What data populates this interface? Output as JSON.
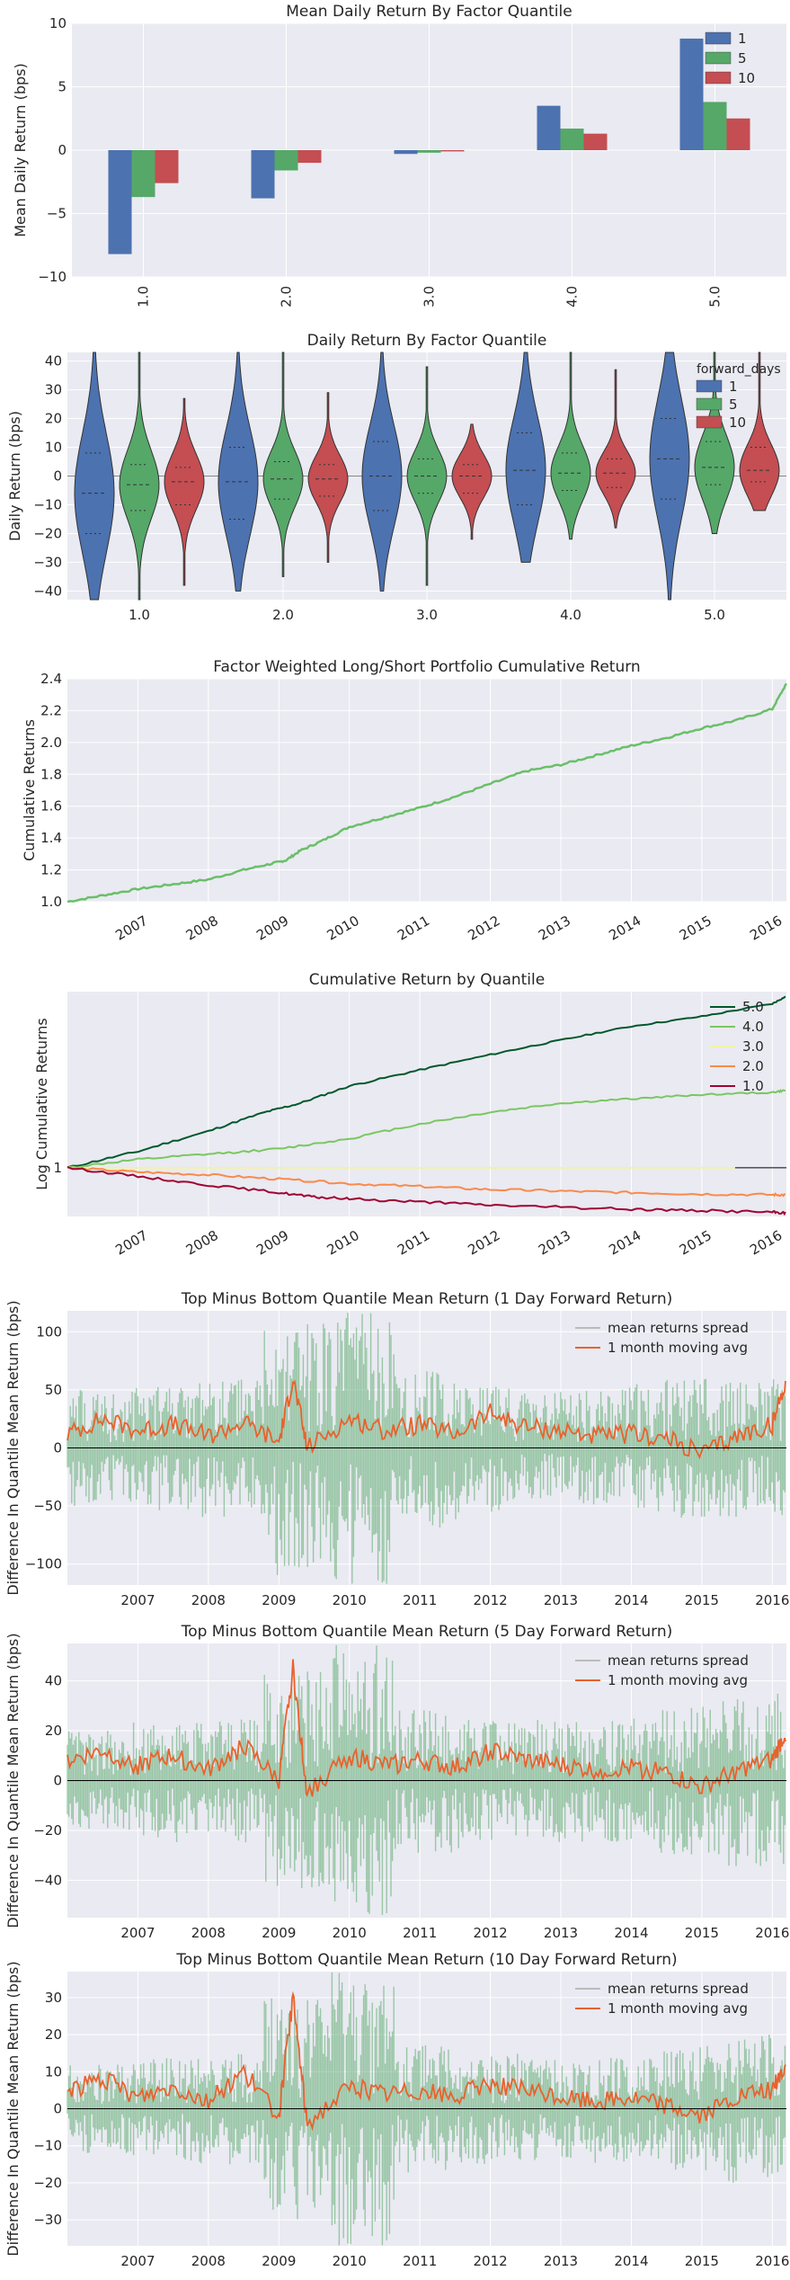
{
  "colors": {
    "plot_bg": "#EAEAF2",
    "grid": "#FFFFFF",
    "q1_blue": "#4C72B0",
    "q5_green": "#55A868",
    "q10_red": "#C44E52",
    "cum_green": "#6ABF69",
    "spread_fill": "#55A868",
    "moving_avg": "#E8622D",
    "q50": "#00582C",
    "q40": "#7AC760",
    "q30": "#F2F2A6",
    "q20": "#F98A4B",
    "q10line": "#A00331"
  },
  "chart_data": [
    {
      "type": "bar",
      "title": "Mean Daily Return By Factor Quantile",
      "xlabel": "",
      "ylabel": "Mean Daily Return (bps)",
      "categories": [
        "1.0",
        "2.0",
        "3.0",
        "4.0",
        "5.0"
      ],
      "series": [
        {
          "name": "1",
          "values": [
            -8.2,
            -3.8,
            -0.3,
            3.5,
            8.8
          ]
        },
        {
          "name": "5",
          "values": [
            -3.7,
            -1.6,
            -0.2,
            1.7,
            3.8
          ]
        },
        {
          "name": "10",
          "values": [
            -2.6,
            -1.0,
            -0.1,
            1.3,
            2.5
          ]
        }
      ],
      "ylim": [
        -10,
        10
      ],
      "yticks": [
        "10",
        "5",
        "0",
        "−5",
        "−10"
      ],
      "legend": "top-right"
    },
    {
      "type": "violin",
      "title": "Daily Return By Factor Quantile",
      "xlabel": "",
      "ylabel": "Daily Return (bps)",
      "categories": [
        "1.0",
        "2.0",
        "3.0",
        "4.0",
        "5.0"
      ],
      "legend_title": "forward_days",
      "series": [
        {
          "name": "1",
          "medians": [
            -6,
            -2,
            0,
            2,
            6
          ],
          "q1": [
            -20,
            -15,
            -12,
            -10,
            -8
          ],
          "q3": [
            8,
            10,
            12,
            15,
            20
          ],
          "min": [
            -45,
            -40,
            -40,
            -30,
            -45
          ],
          "max": [
            45,
            45,
            45,
            45,
            45
          ]
        },
        {
          "name": "5",
          "medians": [
            -3,
            -1,
            0,
            1,
            3
          ],
          "q1": [
            -12,
            -8,
            -6,
            -5,
            -3
          ],
          "q3": [
            4,
            5,
            6,
            8,
            12
          ],
          "min": [
            -45,
            -35,
            -38,
            -22,
            -20
          ],
          "max": [
            45,
            45,
            38,
            45,
            45
          ]
        },
        {
          "name": "10",
          "medians": [
            -2,
            -1,
            0,
            1,
            2
          ],
          "q1": [
            -10,
            -7,
            -6,
            -4,
            -2
          ],
          "q3": [
            3,
            4,
            4,
            6,
            10
          ],
          "min": [
            -38,
            -30,
            -22,
            -18,
            -12
          ],
          "max": [
            27,
            29,
            18,
            37,
            45
          ]
        }
      ],
      "ylim": [
        -43,
        43
      ],
      "yticks": [
        "40",
        "30",
        "20",
        "10",
        "0",
        "−10",
        "−20",
        "−30",
        "−40"
      ],
      "legend": "top-right"
    },
    {
      "type": "line",
      "title": "Factor Weighted Long/Short Portfolio Cumulative Return",
      "xlabel": "",
      "ylabel": "Cumulative Returns",
      "x_ticks": [
        "2007",
        "2008",
        "2009",
        "2010",
        "2011",
        "2012",
        "2013",
        "2014",
        "2015",
        "2016"
      ],
      "x": [
        2006.0,
        2006.5,
        2007.0,
        2007.5,
        2008.0,
        2008.5,
        2008.9,
        2009.1,
        2009.3,
        2009.6,
        2010.0,
        2010.5,
        2011.0,
        2011.5,
        2012.0,
        2012.5,
        2013.0,
        2013.5,
        2014.0,
        2014.5,
        2015.0,
        2015.5,
        2016.0,
        2016.2
      ],
      "values": [
        1.0,
        1.04,
        1.08,
        1.11,
        1.14,
        1.2,
        1.24,
        1.26,
        1.32,
        1.38,
        1.47,
        1.53,
        1.59,
        1.66,
        1.74,
        1.82,
        1.86,
        1.92,
        1.98,
        2.03,
        2.09,
        2.14,
        2.21,
        2.37
      ],
      "ylim": [
        1.0,
        2.4
      ],
      "yticks": [
        "2.4",
        "2.2",
        "2.0",
        "1.8",
        "1.6",
        "1.4",
        "1.2",
        "1.0"
      ]
    },
    {
      "type": "line",
      "title": "Cumulative Return by Quantile",
      "xlabel": "",
      "ylabel": "Log Cumulative Returns",
      "x_ticks": [
        "2007",
        "2008",
        "2009",
        "2010",
        "2011",
        "2012",
        "2013",
        "2014",
        "2015",
        "2016"
      ],
      "yticks": [
        "1"
      ],
      "log_scale": true,
      "legend": "top-right",
      "series": [
        {
          "name": "5.0",
          "x": [
            2006.0,
            2007.0,
            2008.0,
            2008.8,
            2009.3,
            2010.0,
            2011.0,
            2012.0,
            2013.0,
            2014.0,
            2015.0,
            2016.0,
            2016.2
          ],
          "values": [
            1.0,
            1.06,
            1.14,
            1.22,
            1.26,
            1.34,
            1.42,
            1.5,
            1.58,
            1.66,
            1.72,
            1.8,
            1.85
          ]
        },
        {
          "name": "4.0",
          "x": [
            2006.0,
            2007.0,
            2008.0,
            2009.0,
            2010.0,
            2011.0,
            2012.0,
            2013.0,
            2014.0,
            2015.0,
            2016.0,
            2016.2
          ],
          "values": [
            1.0,
            1.03,
            1.05,
            1.07,
            1.11,
            1.17,
            1.22,
            1.26,
            1.28,
            1.3,
            1.31,
            1.32
          ]
        },
        {
          "name": "3.0",
          "x": [
            2006.0,
            2016.2
          ],
          "values": [
            1.0,
            1.0
          ]
        },
        {
          "name": "2.0",
          "x": [
            2006.0,
            2007.0,
            2008.0,
            2009.0,
            2010.0,
            2011.0,
            2012.0,
            2013.0,
            2014.0,
            2015.0,
            2016.0,
            2016.2
          ],
          "values": [
            1.0,
            0.985,
            0.975,
            0.96,
            0.945,
            0.935,
            0.925,
            0.92,
            0.915,
            0.91,
            0.908,
            0.907
          ]
        },
        {
          "name": "1.0",
          "x": [
            2006.0,
            2007.0,
            2008.0,
            2009.0,
            2009.5,
            2010.0,
            2011.0,
            2012.0,
            2013.0,
            2014.0,
            2015.0,
            2016.0,
            2016.2
          ],
          "values": [
            1.0,
            0.97,
            0.94,
            0.915,
            0.9,
            0.895,
            0.885,
            0.875,
            0.868,
            0.862,
            0.858,
            0.853,
            0.85
          ]
        }
      ]
    },
    {
      "type": "area",
      "title": "Top Minus Bottom Quantile Mean Return (1 Day Forward Return)",
      "ylabel": "Difference In Quantile Mean Return (bps)",
      "x_ticks": [
        "2007",
        "2008",
        "2009",
        "2010",
        "2011",
        "2012",
        "2013",
        "2014",
        "2015",
        "2016"
      ],
      "yticks": [
        "100",
        "50",
        "0",
        "−50",
        "−100"
      ],
      "ylim": [
        -118,
        118
      ],
      "legend": "top-right",
      "series": [
        {
          "name": "mean returns spread",
          "amplitude": [
            50,
            55,
            60,
            110,
            120,
            70,
            55,
            50,
            55,
            60,
            60
          ]
        },
        {
          "name": "1 month moving avg",
          "x": [
            2006.0,
            2006.5,
            2007.0,
            2007.5,
            2008.0,
            2008.5,
            2009.0,
            2009.2,
            2009.4,
            2010.0,
            2010.5,
            2011.0,
            2011.5,
            2012.0,
            2012.5,
            2013.0,
            2013.5,
            2014.0,
            2014.5,
            2015.0,
            2015.5,
            2016.0,
            2016.2
          ],
          "values": [
            12,
            25,
            15,
            20,
            10,
            22,
            5,
            60,
            0,
            25,
            15,
            20,
            12,
            30,
            18,
            15,
            10,
            12,
            8,
            -5,
            10,
            20,
            60
          ]
        }
      ]
    },
    {
      "type": "area",
      "title": "Top Minus Bottom Quantile Mean Return (5 Day Forward Return)",
      "ylabel": "Difference In Quantile Mean Return (bps)",
      "x_ticks": [
        "2007",
        "2008",
        "2009",
        "2010",
        "2011",
        "2012",
        "2013",
        "2014",
        "2015",
        "2016"
      ],
      "yticks": [
        "40",
        "20",
        "0",
        "−20",
        "−40"
      ],
      "ylim": [
        -55,
        55
      ],
      "legend": "top-right",
      "series": [
        {
          "name": "mean returns spread",
          "amplitude": [
            20,
            25,
            25,
            45,
            55,
            30,
            25,
            25,
            25,
            30,
            35
          ]
        },
        {
          "name": "1 month moving avg",
          "x": [
            2006.0,
            2006.5,
            2007.0,
            2007.5,
            2008.0,
            2008.5,
            2009.0,
            2009.2,
            2009.4,
            2010.0,
            2010.5,
            2011.0,
            2011.5,
            2012.0,
            2012.5,
            2013.0,
            2013.5,
            2014.0,
            2014.5,
            2015.0,
            2015.5,
            2016.0,
            2016.2
          ],
          "values": [
            8,
            12,
            6,
            10,
            4,
            14,
            0,
            45,
            -5,
            10,
            6,
            8,
            5,
            12,
            8,
            6,
            4,
            5,
            3,
            -3,
            4,
            8,
            20
          ]
        }
      ]
    },
    {
      "type": "area",
      "title": "Top Minus Bottom Quantile Mean Return (10 Day Forward Return)",
      "ylabel": "Difference In Quantile Mean Return (bps)",
      "x_ticks": [
        "2007",
        "2008",
        "2009",
        "2010",
        "2011",
        "2012",
        "2013",
        "2014",
        "2015",
        "2016"
      ],
      "yticks": [
        "30",
        "20",
        "10",
        "0",
        "−10",
        "−20",
        "−30"
      ],
      "ylim": [
        -37,
        37
      ],
      "legend": "top-right",
      "series": [
        {
          "name": "mean returns spread",
          "amplitude": [
            12,
            14,
            15,
            30,
            37,
            18,
            15,
            14,
            15,
            17,
            20
          ]
        },
        {
          "name": "1 month moving avg",
          "x": [
            2006.0,
            2006.5,
            2007.0,
            2007.5,
            2008.0,
            2008.5,
            2009.0,
            2009.2,
            2009.4,
            2010.0,
            2010.5,
            2011.0,
            2011.5,
            2012.0,
            2012.5,
            2013.0,
            2013.5,
            2014.0,
            2014.5,
            2015.0,
            2015.5,
            2016.0,
            2016.2
          ],
          "values": [
            5,
            8,
            3,
            6,
            2,
            10,
            -2,
            30,
            -4,
            6,
            4,
            5,
            3,
            7,
            5,
            3,
            2,
            3,
            1,
            -2,
            3,
            5,
            12
          ]
        }
      ]
    }
  ]
}
